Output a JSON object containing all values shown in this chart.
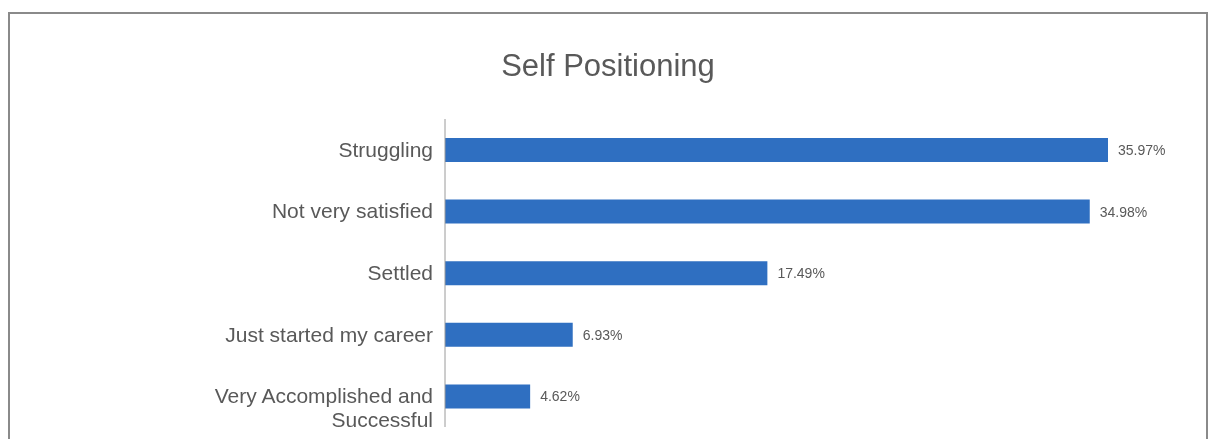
{
  "chart_data": {
    "type": "bar",
    "orientation": "horizontal",
    "title": "Self Positioning",
    "categories": [
      "Struggling",
      "Not very satisfied",
      "Settled",
      "Just started my career",
      "Very Accomplished and Successful"
    ],
    "values": [
      35.97,
      34.98,
      17.49,
      6.93,
      4.62
    ],
    "value_labels": [
      "35.97%",
      "34.98%",
      "17.49%",
      "6.93%",
      "4.62%"
    ],
    "color": "#2f6fc1"
  }
}
